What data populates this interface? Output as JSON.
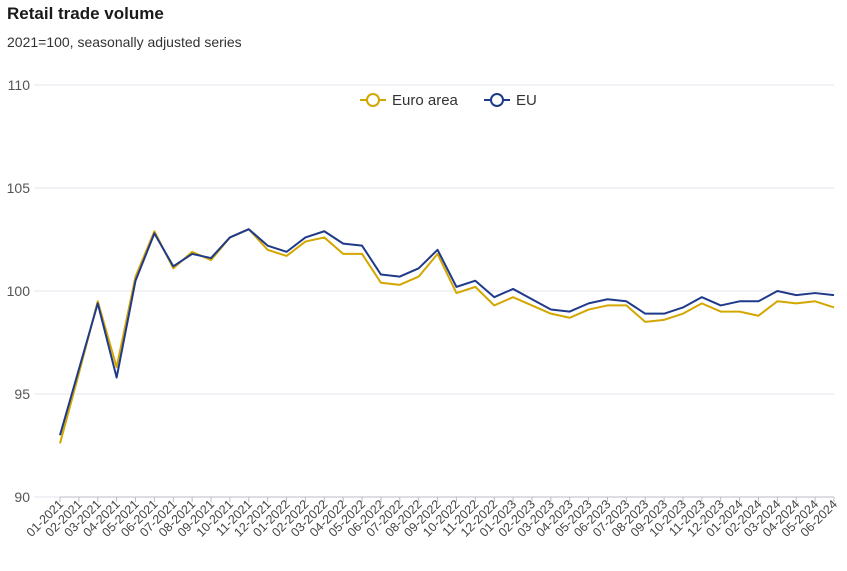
{
  "chart_data": {
    "type": "line",
    "title": "Retail trade volume",
    "subtitle": "2021=100, seasonally adjusted series",
    "xlabel": "",
    "ylabel": "",
    "ylim": [
      90,
      110
    ],
    "yticks": [
      90,
      95,
      100,
      105,
      110
    ],
    "grid": true,
    "legend_position": "top-center",
    "categories": [
      "01-2021",
      "02-2021",
      "03-2021",
      "04-2021",
      "05-2021",
      "06-2021",
      "07-2021",
      "08-2021",
      "09-2021",
      "10-2021",
      "11-2021",
      "12-2021",
      "01-2022",
      "02-2022",
      "03-2022",
      "04-2022",
      "05-2022",
      "06-2022",
      "07-2022",
      "08-2022",
      "09-2022",
      "10-2022",
      "11-2022",
      "12-2022",
      "01-2023",
      "02-2023",
      "03-2023",
      "04-2023",
      "05-2023",
      "06-2023",
      "07-2023",
      "08-2023",
      "09-2023",
      "10-2023",
      "11-2023",
      "12-2023",
      "01-2024",
      "02-2024",
      "03-2024",
      "04-2024",
      "05-2024",
      "06-2024"
    ],
    "series": [
      {
        "name": "Euro area",
        "color": "#d4a600",
        "values": [
          92.6,
          96.0,
          99.5,
          96.3,
          100.7,
          102.9,
          101.1,
          101.9,
          101.5,
          102.6,
          103.0,
          102.0,
          101.7,
          102.4,
          102.6,
          101.8,
          101.8,
          100.4,
          100.3,
          100.7,
          101.8,
          99.9,
          100.2,
          99.3,
          99.7,
          99.3,
          98.9,
          98.7,
          99.1,
          99.3,
          99.3,
          98.5,
          98.6,
          98.9,
          99.4,
          99.0,
          99.0,
          98.8,
          99.5,
          99.4,
          99.5,
          99.2
        ]
      },
      {
        "name": "EU",
        "color": "#1f3a8a",
        "values": [
          93.0,
          96.2,
          99.4,
          95.8,
          100.5,
          102.8,
          101.2,
          101.8,
          101.6,
          102.6,
          103.0,
          102.2,
          101.9,
          102.6,
          102.9,
          102.3,
          102.2,
          100.8,
          100.7,
          101.1,
          102.0,
          100.2,
          100.5,
          99.7,
          100.1,
          99.6,
          99.1,
          99.0,
          99.4,
          99.6,
          99.5,
          98.9,
          98.9,
          99.2,
          99.7,
          99.3,
          99.5,
          99.5,
          100.0,
          99.8,
          99.9,
          99.8
        ]
      }
    ]
  }
}
